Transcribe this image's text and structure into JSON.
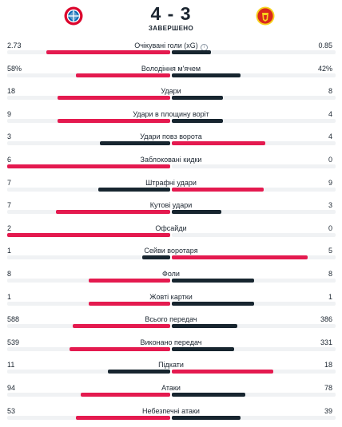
{
  "match": {
    "score": "4 - 3",
    "status": "ЗАВЕРШЕНО",
    "home_logo_icon": "bayern-munich-crest-icon",
    "away_logo_icon": "manchester-united-crest-icon"
  },
  "colors": {
    "home": "#e41a4f",
    "away": "#17252f",
    "track": "#f0f2f4"
  },
  "stats": [
    {
      "label": "Очікувані голи (xG)",
      "home": "2.73",
      "away": "0.85",
      "info": true,
      "home_share": 0.76,
      "away_share": 0.24
    },
    {
      "label": "Володіння м'ячем",
      "home": "58%",
      "away": "42%",
      "home_share": 0.58,
      "away_share": 0.42
    },
    {
      "label": "Удари",
      "home": "18",
      "away": "8",
      "home_share": 0.69,
      "away_share": 0.31
    },
    {
      "label": "Удари в площину воріт",
      "home": "9",
      "away": "4",
      "home_share": 0.69,
      "away_share": 0.31
    },
    {
      "label": "Удари повз ворота",
      "home": "3",
      "away": "4",
      "home_share": 0.43,
      "away_share": 0.57
    },
    {
      "label": "Заблоковані кидки",
      "home": "6",
      "away": "0",
      "home_share": 1.0,
      "away_share": 0.0
    },
    {
      "label": "Штрафні удари",
      "home": "7",
      "away": "9",
      "home_share": 0.44,
      "away_share": 0.56
    },
    {
      "label": "Кутові удари",
      "home": "7",
      "away": "3",
      "home_share": 0.7,
      "away_share": 0.3
    },
    {
      "label": "Офсайди",
      "home": "2",
      "away": "0",
      "home_share": 1.0,
      "away_share": 0.0
    },
    {
      "label": "Сейви воротаря",
      "home": "1",
      "away": "5",
      "home_share": 0.17,
      "away_share": 0.83
    },
    {
      "label": "Фоли",
      "home": "8",
      "away": "8",
      "home_share": 0.5,
      "away_share": 0.5
    },
    {
      "label": "Жовті картки",
      "home": "1",
      "away": "1",
      "home_share": 0.5,
      "away_share": 0.5
    },
    {
      "label": "Всього передач",
      "home": "588",
      "away": "386",
      "home_share": 0.6,
      "away_share": 0.4
    },
    {
      "label": "Виконано передач",
      "home": "539",
      "away": "331",
      "home_share": 0.62,
      "away_share": 0.38
    },
    {
      "label": "Підкати",
      "home": "11",
      "away": "18",
      "home_share": 0.38,
      "away_share": 0.62
    },
    {
      "label": "Атаки",
      "home": "94",
      "away": "78",
      "home_share": 0.55,
      "away_share": 0.45
    },
    {
      "label": "Небезпечні атаки",
      "home": "53",
      "away": "39",
      "home_share": 0.58,
      "away_share": 0.42
    }
  ]
}
